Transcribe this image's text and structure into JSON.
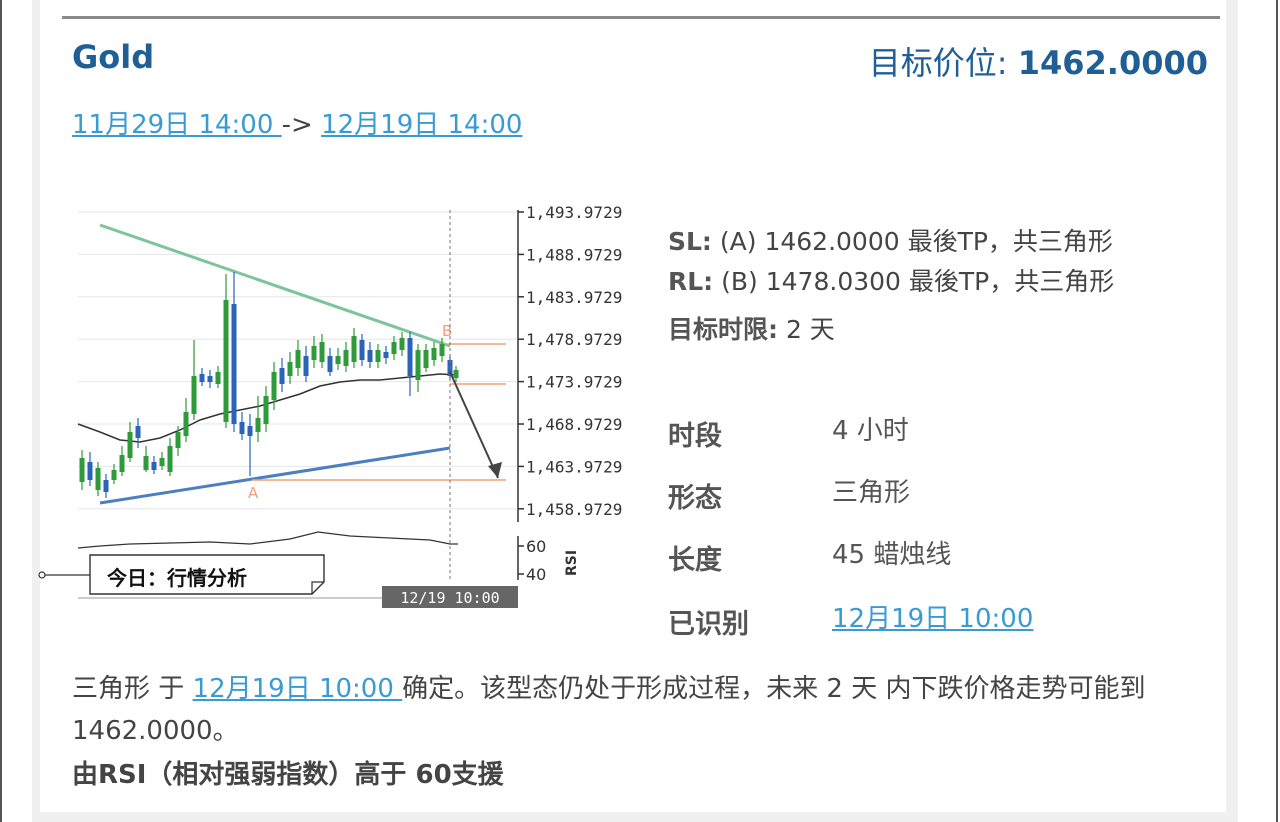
{
  "header": {
    "symbol": "Gold",
    "target_label": "目标价位:",
    "target_value": "1462.0000"
  },
  "range": {
    "start": "11月29日 14:00 ",
    "arrow": "->",
    "end": "12月19日 14:00"
  },
  "levels": {
    "sl_label": "SL:",
    "sl_text": "(A) 1462.0000 最後TP，共三角形",
    "rl_label": "RL:",
    "rl_text": "(B) 1478.0300 最後TP，共三角形",
    "time_label": "目标时限:",
    "time_value": "2 天"
  },
  "properties": [
    {
      "label": "时段",
      "value": "4 小时"
    },
    {
      "label": "形态",
      "value": "三角形"
    },
    {
      "label": "长度",
      "value": "45 蜡烛线"
    },
    {
      "label": "已识别",
      "value": "12月19日 10:00"
    }
  ],
  "description": {
    "part1": "三角形 于 ",
    "link": "12月19日 10:00 ",
    "part2": "确定。该型态仍处于形成过程，未来 2 天 内下跌价格走势可能到 1462.0000。",
    "rsi_note": "由RSI（相对强弱指数）高于 60支援"
  },
  "chart": {
    "price_ticks": [
      "1,493.9729",
      "1,488.9729",
      "1,483.9729",
      "1,478.9729",
      "1,473.9729",
      "1,468.9729",
      "1,463.9729",
      "1,458.9729"
    ],
    "rsi_label": "RSI",
    "rsi_ticks": [
      "60",
      "40"
    ],
    "point_a": "A",
    "point_b": "B",
    "time_label": "12/19 10:00",
    "callout": "今日：行情分析",
    "colors": {
      "upper_line": "#7dc49a",
      "lower_line": "#4a7fc1",
      "level_line": "#f2a07a",
      "candle_up": "#2e9a3a",
      "candle_down": "#2a63b8"
    }
  }
}
